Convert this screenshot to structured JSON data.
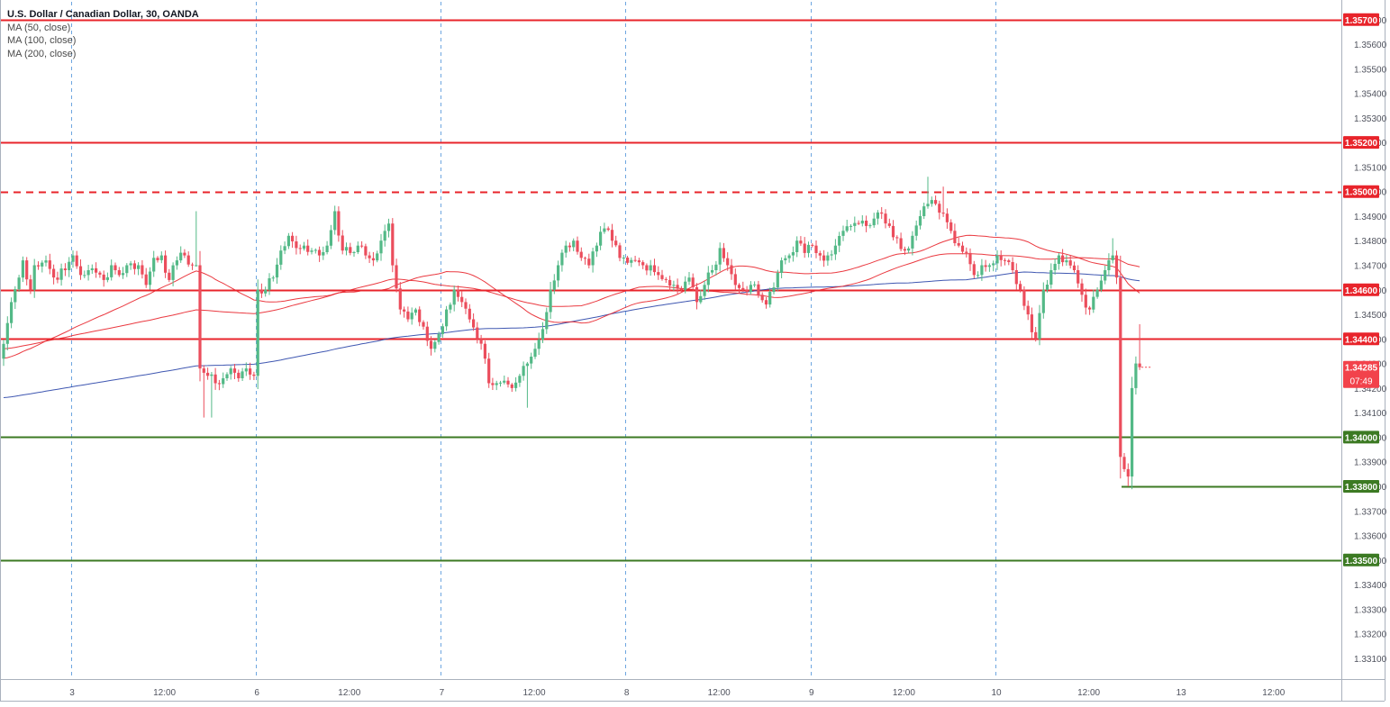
{
  "legend": {
    "title": "U.S. Dollar / Canadian Dollar, 30, OANDA",
    "ma50": "MA (50, close)",
    "ma100": "MA (100, close)",
    "ma200": "MA (200, close)"
  },
  "chart_data": {
    "type": "candlestick",
    "symbol": "USD/CAD",
    "timeframe": "30",
    "source": "OANDA",
    "ylim": [
      1.33,
      1.3575
    ],
    "price_ticks": [
      "1.33100",
      "1.33200",
      "1.33300",
      "1.33400",
      "1.33500",
      "1.33600",
      "1.33700",
      "1.33800",
      "1.33900",
      "1.34000",
      "1.34100",
      "1.34200",
      "1.34300",
      "1.34400",
      "1.34500",
      "1.34600",
      "1.34700",
      "1.34800",
      "1.34900",
      "1.35000",
      "1.35100",
      "1.35200",
      "1.35300",
      "1.35400",
      "1.35500",
      "1.35600",
      "1.35700"
    ],
    "time_ticks": [
      {
        "label": "3",
        "t": 18
      },
      {
        "label": "12:00",
        "t": 42
      },
      {
        "label": "6",
        "t": 66
      },
      {
        "label": "12:00",
        "t": 90
      },
      {
        "label": "7",
        "t": 114
      },
      {
        "label": "12:00",
        "t": 138
      },
      {
        "label": "8",
        "t": 162
      },
      {
        "label": "12:00",
        "t": 186
      },
      {
        "label": "9",
        "t": 210
      },
      {
        "label": "12:00",
        "t": 234
      },
      {
        "label": "10",
        "t": 258
      },
      {
        "label": "12:00",
        "t": 282
      },
      {
        "label": "13",
        "t": 306
      },
      {
        "label": "12:00",
        "t": 330
      }
    ],
    "session_breaks": [
      17.5,
      65.5,
      113.5,
      161.5,
      209.5,
      257.5
    ],
    "levels": [
      {
        "price": 1.357,
        "label": "1.35700",
        "color": "#e8242b",
        "style": "solid"
      },
      {
        "price": 1.352,
        "label": "1.35200",
        "color": "#e8242b",
        "style": "solid"
      },
      {
        "price": 1.35,
        "label": "1.35000",
        "color": "#e8242b",
        "style": "dashed"
      },
      {
        "price": 1.346,
        "label": "1.34600",
        "color": "#e8242b",
        "style": "solid"
      },
      {
        "price": 1.344,
        "label": "1.34400",
        "color": "#e8242b",
        "style": "solid"
      },
      {
        "price": 1.34,
        "label": "1.34000",
        "color": "#3c7a23",
        "style": "solid"
      },
      {
        "price": 1.338,
        "label": "1.33800",
        "color": "#3c7a23",
        "style": "solid",
        "t_start": 291
      },
      {
        "price": 1.335,
        "label": "1.33500",
        "color": "#3c7a23",
        "style": "solid"
      }
    ],
    "current_price": {
      "price": 1.34285,
      "label": "1.34285",
      "countdown": "07:49",
      "color": "#f2424b"
    },
    "candle_colors": {
      "up": "#53b987",
      "down": "#eb4d5c"
    },
    "ma_colors": {
      "ma50": "#e8242b",
      "ma100": "#e8242b",
      "ma200": "#2a45a8"
    },
    "anchors": [
      [
        0,
        1.3438
      ],
      [
        2,
        1.3455
      ],
      [
        4,
        1.3465
      ],
      [
        5,
        1.3472
      ],
      [
        7,
        1.346
      ],
      [
        8,
        1.347
      ],
      [
        11,
        1.3472
      ],
      [
        13,
        1.3465
      ],
      [
        16,
        1.3468
      ],
      [
        18,
        1.3474
      ],
      [
        20,
        1.3466
      ],
      [
        22,
        1.3468
      ],
      [
        24,
        1.3467
      ],
      [
        26,
        1.3464
      ],
      [
        28,
        1.347
      ],
      [
        30,
        1.3466
      ],
      [
        32,
        1.347
      ],
      [
        35,
        1.347
      ],
      [
        37,
        1.3462
      ],
      [
        39,
        1.3473
      ],
      [
        41,
        1.3474
      ],
      [
        43,
        1.3464
      ],
      [
        45,
        1.3472
      ],
      [
        47,
        1.3474
      ],
      [
        49,
        1.347
      ],
      [
        50,
        1.347
      ],
      [
        51,
        1.3428
      ],
      [
        53,
        1.3425
      ],
      [
        55,
        1.3422
      ],
      [
        57,
        1.3424
      ],
      [
        59,
        1.3428
      ],
      [
        61,
        1.3424
      ],
      [
        63,
        1.3428
      ],
      [
        65,
        1.3425
      ],
      [
        66,
        1.346
      ],
      [
        68,
        1.346
      ],
      [
        70,
        1.3465
      ],
      [
        72,
        1.3476
      ],
      [
        74,
        1.3482
      ],
      [
        76,
        1.3477
      ],
      [
        78,
        1.3478
      ],
      [
        80,
        1.3476
      ],
      [
        82,
        1.3474
      ],
      [
        84,
        1.3478
      ],
      [
        86,
        1.3492
      ],
      [
        88,
        1.3476
      ],
      [
        90,
        1.3475
      ],
      [
        92,
        1.3478
      ],
      [
        94,
        1.3474
      ],
      [
        96,
        1.3472
      ],
      [
        98,
        1.348
      ],
      [
        100,
        1.3487
      ],
      [
        101,
        1.347
      ],
      [
        103,
        1.3452
      ],
      [
        105,
        1.3448
      ],
      [
        107,
        1.3452
      ],
      [
        109,
        1.3445
      ],
      [
        111,
        1.3436
      ],
      [
        113,
        1.3442
      ],
      [
        115,
        1.3452
      ],
      [
        117,
        1.346
      ],
      [
        119,
        1.3455
      ],
      [
        121,
        1.3448
      ],
      [
        123,
        1.344
      ],
      [
        125,
        1.3432
      ],
      [
        126,
        1.3422
      ],
      [
        128,
        1.3422
      ],
      [
        130,
        1.3423
      ],
      [
        132,
        1.342
      ],
      [
        134,
        1.3425
      ],
      [
        136,
        1.343
      ],
      [
        138,
        1.3436
      ],
      [
        140,
        1.3444
      ],
      [
        142,
        1.346
      ],
      [
        144,
        1.347
      ],
      [
        146,
        1.3478
      ],
      [
        148,
        1.348
      ],
      [
        150,
        1.3473
      ],
      [
        152,
        1.347
      ],
      [
        154,
        1.3478
      ],
      [
        156,
        1.3485
      ],
      [
        158,
        1.348
      ],
      [
        160,
        1.3473
      ],
      [
        162,
        1.3471
      ],
      [
        164,
        1.3472
      ],
      [
        166,
        1.347
      ],
      [
        168,
        1.347
      ],
      [
        170,
        1.3466
      ],
      [
        172,
        1.3464
      ],
      [
        174,
        1.3462
      ],
      [
        176,
        1.346
      ],
      [
        178,
        1.3465
      ],
      [
        180,
        1.3455
      ],
      [
        182,
        1.3462
      ],
      [
        184,
        1.3468
      ],
      [
        186,
        1.3477
      ],
      [
        188,
        1.347
      ],
      [
        190,
        1.3462
      ],
      [
        192,
        1.346
      ],
      [
        194,
        1.3462
      ],
      [
        196,
        1.3458
      ],
      [
        198,
        1.3454
      ],
      [
        200,
        1.3461
      ],
      [
        202,
        1.3472
      ],
      [
        204,
        1.3474
      ],
      [
        206,
        1.348
      ],
      [
        208,
        1.3475
      ],
      [
        210,
        1.3478
      ],
      [
        212,
        1.3474
      ],
      [
        214,
        1.3474
      ],
      [
        216,
        1.3478
      ],
      [
        218,
        1.3484
      ],
      [
        220,
        1.3486
      ],
      [
        222,
        1.3487
      ],
      [
        224,
        1.3486
      ],
      [
        226,
        1.3489
      ],
      [
        228,
        1.3491
      ],
      [
        230,
        1.3486
      ],
      [
        232,
        1.3481
      ],
      [
        234,
        1.3476
      ],
      [
        236,
        1.3482
      ],
      [
        238,
        1.349
      ],
      [
        240,
        1.3495
      ],
      [
        242,
        1.3495
      ],
      [
        244,
        1.3491
      ],
      [
        246,
        1.3484
      ],
      [
        248,
        1.3478
      ],
      [
        250,
        1.3475
      ],
      [
        252,
        1.3466
      ],
      [
        254,
        1.347
      ],
      [
        256,
        1.347
      ],
      [
        258,
        1.3474
      ],
      [
        260,
        1.3472
      ],
      [
        262,
        1.3468
      ],
      [
        264,
        1.346
      ],
      [
        266,
        1.345
      ],
      [
        268,
        1.344
      ],
      [
        270,
        1.346
      ],
      [
        272,
        1.3468
      ],
      [
        274,
        1.3474
      ],
      [
        276,
        1.3472
      ],
      [
        278,
        1.3468
      ],
      [
        280,
        1.3458
      ],
      [
        282,
        1.3452
      ],
      [
        284,
        1.346
      ],
      [
        286,
        1.3468
      ],
      [
        288,
        1.3474
      ],
      [
        289,
        1.3465
      ],
      [
        290,
        1.3392
      ],
      [
        291,
        1.3387
      ],
      [
        292,
        1.3384
      ],
      [
        293,
        1.342
      ],
      [
        294,
        1.343
      ],
      [
        295,
        1.34285
      ]
    ]
  }
}
